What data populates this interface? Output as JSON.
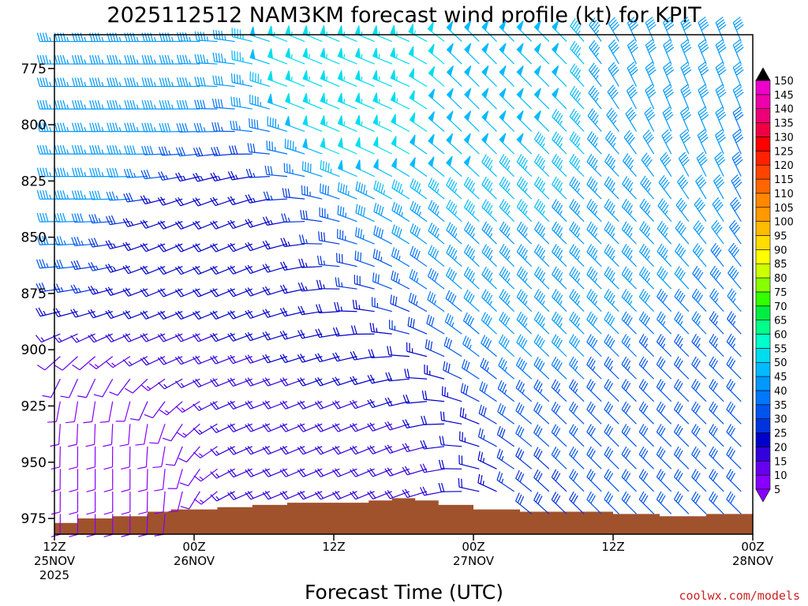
{
  "chart_data": {
    "type": "wind-barb-time-height",
    "title": "2025112512 NAM3KM forecast wind profile (kt) for KPIT",
    "xlabel": "Forecast Time (UTC)",
    "ylabel": "",
    "credit": "coolwx.com/models",
    "y_axis": {
      "unit": "hPa",
      "range": [
        760,
        982
      ],
      "ticks": [
        "775",
        "800",
        "825",
        "850",
        "875",
        "900",
        "925",
        "950",
        "975"
      ]
    },
    "x_axis": {
      "unit": "forecast hour",
      "range": [
        0,
        60
      ],
      "ticks": [
        {
          "hour": 0,
          "lines": [
            "12Z",
            "25NOV",
            "2025"
          ]
        },
        {
          "hour": 12,
          "lines": [
            "00Z",
            "26NOV"
          ]
        },
        {
          "hour": 24,
          "lines": [
            "12Z"
          ]
        },
        {
          "hour": 36,
          "lines": [
            "00Z",
            "27NOV"
          ]
        },
        {
          "hour": 48,
          "lines": [
            "12Z"
          ]
        },
        {
          "hour": 60,
          "lines": [
            "00Z",
            "28NOV"
          ]
        }
      ]
    },
    "colorbar": {
      "unit": "kt",
      "levels": [
        "5",
        "10",
        "15",
        "20",
        "25",
        "30",
        "35",
        "40",
        "45",
        "50",
        "55",
        "60",
        "65",
        "70",
        "75",
        "80",
        "85",
        "90",
        "95",
        "100",
        "105",
        "110",
        "115",
        "120",
        "125",
        "130",
        "135",
        "140",
        "145",
        "150"
      ],
      "colors": [
        "#8800ff",
        "#6600ee",
        "#3300dd",
        "#0000cc",
        "#0033dd",
        "#0055ee",
        "#0077ff",
        "#0099ff",
        "#00bbff",
        "#00ddee",
        "#00ffcc",
        "#00ff88",
        "#00ee44",
        "#33ff00",
        "#88ff00",
        "#ccff00",
        "#ffff00",
        "#ffdd00",
        "#ffbb00",
        "#ff9900",
        "#ff8800",
        "#ff6600",
        "#ff4400",
        "#ff2200",
        "#ff0000",
        "#ee0044",
        "#ee0077",
        "#ee00aa",
        "#ee00cc",
        "#ff00ff"
      ]
    },
    "terrain_surface_hpa": [
      {
        "hour": 0,
        "p": 977
      },
      {
        "hour": 2,
        "p": 975
      },
      {
        "hour": 5,
        "p": 974
      },
      {
        "hour": 8,
        "p": 972
      },
      {
        "hour": 10,
        "p": 971
      },
      {
        "hour": 12,
        "p": 971
      },
      {
        "hour": 14,
        "p": 970
      },
      {
        "hour": 17,
        "p": 969
      },
      {
        "hour": 20,
        "p": 968
      },
      {
        "hour": 24,
        "p": 968
      },
      {
        "hour": 27,
        "p": 967
      },
      {
        "hour": 29,
        "p": 966
      },
      {
        "hour": 31,
        "p": 967
      },
      {
        "hour": 33,
        "p": 969
      },
      {
        "hour": 36,
        "p": 971
      },
      {
        "hour": 40,
        "p": 972
      },
      {
        "hour": 44,
        "p": 972
      },
      {
        "hour": 48,
        "p": 973
      },
      {
        "hour": 52,
        "p": 974
      },
      {
        "hour": 56,
        "p": 973
      },
      {
        "hour": 60,
        "p": 974
      }
    ],
    "wind_field_key_points": [
      {
        "hour": 2,
        "p": 800,
        "speed_kt": 45,
        "direction": "W"
      },
      {
        "hour": 6,
        "p": 775,
        "speed_kt": 45,
        "direction": "W"
      },
      {
        "hour": 13,
        "p": 860,
        "speed_kt": 20,
        "direction": "WSW"
      },
      {
        "hour": 27,
        "p": 770,
        "speed_kt": 55,
        "direction": "WNW"
      },
      {
        "hour": 38,
        "p": 780,
        "speed_kt": 50,
        "direction": "NW"
      },
      {
        "hour": 44,
        "p": 850,
        "speed_kt": 45,
        "direction": "NW"
      },
      {
        "hour": 56,
        "p": 775,
        "speed_kt": 40,
        "direction": "NNW"
      },
      {
        "hour": 4,
        "p": 960,
        "speed_kt": 10,
        "direction": "S"
      },
      {
        "hour": 24,
        "p": 955,
        "speed_kt": 20,
        "direction": "WSW"
      },
      {
        "hour": 52,
        "p": 960,
        "speed_kt": 30,
        "direction": "NW"
      }
    ]
  }
}
